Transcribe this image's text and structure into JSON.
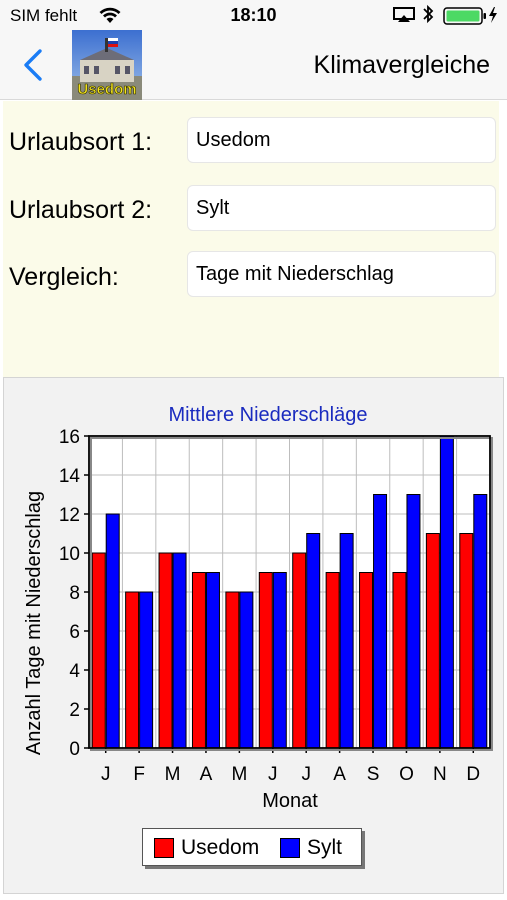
{
  "status_bar": {
    "carrier": "SIM fehlt",
    "time": "18:10"
  },
  "nav": {
    "back_icon": "chevron-left-icon",
    "logo_text": "Usedom",
    "title": "Klimavergleiche"
  },
  "form": {
    "location1_label": "Urlaubsort 1:",
    "location1_value": "Usedom",
    "location2_label": "Urlaubsort 2:",
    "location2_value": "Sylt",
    "comparison_label": "Vergleich:",
    "comparison_value": "Tage mit Niederschlag"
  },
  "colors": {
    "series1": "#ff0000",
    "series2": "#0000ff",
    "title": "#1a2bbf",
    "accent": "#1a7cf5",
    "battery": "#4cd964"
  },
  "chart_data": {
    "type": "bar",
    "title": "Mittlere Niederschläge",
    "xlabel": "Monat",
    "ylabel": "Anzahl Tage mit Niederschlag",
    "categories": [
      "J",
      "F",
      "M",
      "A",
      "M",
      "J",
      "J",
      "A",
      "S",
      "O",
      "N",
      "D"
    ],
    "ylim": [
      0,
      16
    ],
    "yticks": [
      0,
      2,
      4,
      6,
      8,
      10,
      12,
      14,
      16
    ],
    "grid": true,
    "legend": "bottom",
    "series": [
      {
        "name": "Usedom",
        "color": "#ff0000",
        "values": [
          10,
          8,
          10,
          9,
          8,
          9,
          10,
          9,
          9,
          9,
          11,
          11
        ]
      },
      {
        "name": "Sylt",
        "color": "#0000ff",
        "values": [
          12,
          8,
          10,
          9,
          8,
          9,
          11,
          11,
          13,
          13,
          16,
          13
        ]
      }
    ]
  }
}
